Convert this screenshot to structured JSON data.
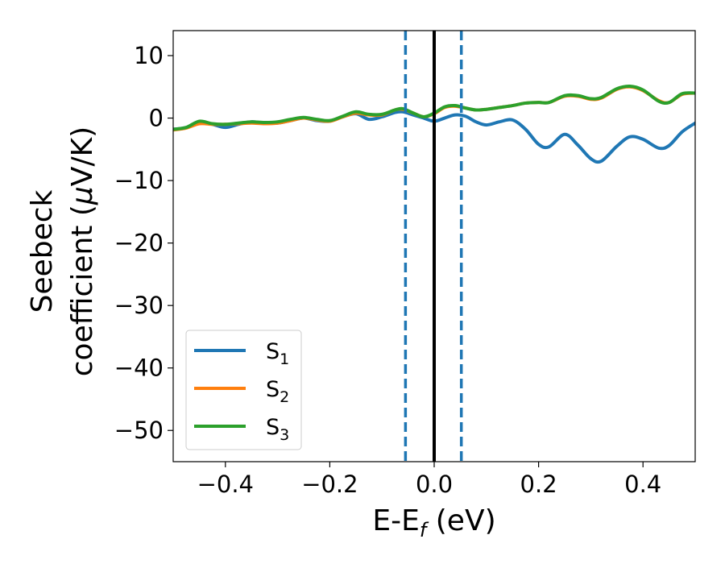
{
  "chart_data": {
    "type": "line",
    "xlabel": {
      "main": "E-E",
      "sub": "f",
      "unit": " (eV)"
    },
    "ylabel": {
      "line1": "Seebeck",
      "line2_prefix": "coefficient  (",
      "line2_mu": "μ",
      "line2_suffix": "V/K)"
    },
    "xlim": [
      -0.5,
      0.5
    ],
    "ylim": [
      -55,
      14
    ],
    "xticks": [
      -0.4,
      -0.2,
      0.0,
      0.2,
      0.4
    ],
    "xtick_labels": [
      "−0.4",
      "−0.2",
      "0.0",
      "0.2",
      "0.4"
    ],
    "yticks": [
      10,
      0,
      -10,
      -20,
      -30,
      -40,
      -50
    ],
    "ytick_labels": [
      "10",
      "0",
      "−10",
      "−20",
      "−30",
      "−40",
      "−50"
    ],
    "grid": false,
    "legend_position": "lower-left",
    "vlines": [
      {
        "x": -0.055,
        "style": "dashed",
        "color": "#1f77b4"
      },
      {
        "x": 0.0,
        "style": "solid",
        "color": "#000000"
      },
      {
        "x": 0.052,
        "style": "dashed",
        "color": "#1f77b4"
      }
    ],
    "series": [
      {
        "name": "S",
        "sub": "1",
        "color": "#1f77b4",
        "x": [
          -0.5,
          -0.475,
          -0.45,
          -0.425,
          -0.4,
          -0.375,
          -0.35,
          -0.325,
          -0.3,
          -0.275,
          -0.25,
          -0.225,
          -0.2,
          -0.175,
          -0.15,
          -0.125,
          -0.1,
          -0.075,
          -0.06,
          -0.04,
          -0.02,
          0.0,
          0.02,
          0.04,
          0.06,
          0.08,
          0.1,
          0.125,
          0.15,
          0.175,
          0.2,
          0.22,
          0.25,
          0.275,
          0.3,
          0.32,
          0.35,
          0.375,
          0.4,
          0.43,
          0.45,
          0.475,
          0.5
        ],
        "y": [
          -1.8,
          -1.5,
          -0.6,
          -1.0,
          -1.5,
          -1.0,
          -0.6,
          -0.8,
          -0.8,
          -0.4,
          0.0,
          -0.4,
          -0.5,
          0.2,
          0.7,
          -0.2,
          0.2,
          0.9,
          1.0,
          0.5,
          0.0,
          -0.5,
          0.0,
          0.5,
          0.3,
          -0.6,
          -1.1,
          -0.6,
          -0.3,
          -1.8,
          -4.2,
          -4.6,
          -2.6,
          -4.3,
          -6.5,
          -6.9,
          -4.5,
          -3.0,
          -3.4,
          -4.8,
          -4.4,
          -2.2,
          -0.8
        ]
      },
      {
        "name": "S",
        "sub": "2",
        "color": "#ff7f0e",
        "x": [
          -0.5,
          -0.475,
          -0.45,
          -0.425,
          -0.4,
          -0.375,
          -0.35,
          -0.325,
          -0.3,
          -0.275,
          -0.25,
          -0.225,
          -0.2,
          -0.175,
          -0.15,
          -0.125,
          -0.1,
          -0.075,
          -0.06,
          -0.04,
          -0.02,
          0.0,
          0.02,
          0.04,
          0.06,
          0.08,
          0.1,
          0.125,
          0.15,
          0.175,
          0.2,
          0.22,
          0.25,
          0.275,
          0.3,
          0.32,
          0.35,
          0.375,
          0.4,
          0.43,
          0.45,
          0.475,
          0.5
        ],
        "y": [
          -1.9,
          -1.6,
          -0.9,
          -1.0,
          -1.0,
          -0.9,
          -0.8,
          -0.9,
          -0.8,
          -0.4,
          0.0,
          -0.3,
          -0.5,
          0.2,
          0.8,
          0.5,
          0.5,
          1.3,
          1.4,
          0.8,
          0.2,
          0.7,
          1.7,
          1.9,
          1.6,
          1.3,
          1.4,
          1.7,
          2.0,
          2.4,
          2.5,
          2.5,
          3.5,
          3.5,
          3.0,
          3.2,
          4.6,
          5.0,
          4.4,
          2.8,
          2.5,
          3.8,
          4.0
        ]
      },
      {
        "name": "S",
        "sub": "3",
        "color": "#2ca02c",
        "x": [
          -0.5,
          -0.475,
          -0.45,
          -0.425,
          -0.4,
          -0.375,
          -0.35,
          -0.325,
          -0.3,
          -0.275,
          -0.25,
          -0.225,
          -0.2,
          -0.175,
          -0.15,
          -0.125,
          -0.1,
          -0.075,
          -0.06,
          -0.04,
          -0.02,
          0.0,
          0.02,
          0.04,
          0.06,
          0.08,
          0.1,
          0.125,
          0.15,
          0.175,
          0.2,
          0.22,
          0.25,
          0.275,
          0.3,
          0.32,
          0.35,
          0.375,
          0.4,
          0.43,
          0.45,
          0.475,
          0.5
        ],
        "y": [
          -1.8,
          -1.5,
          -0.5,
          -0.9,
          -1.0,
          -0.8,
          -0.6,
          -0.7,
          -0.6,
          -0.2,
          0.1,
          -0.2,
          -0.4,
          0.3,
          1.0,
          0.6,
          0.6,
          1.3,
          1.5,
          0.8,
          0.2,
          0.8,
          1.8,
          2.0,
          1.6,
          1.3,
          1.4,
          1.7,
          2.0,
          2.4,
          2.5,
          2.5,
          3.6,
          3.6,
          3.1,
          3.3,
          4.7,
          5.1,
          4.5,
          2.7,
          2.5,
          3.9,
          4.0
        ]
      }
    ]
  }
}
